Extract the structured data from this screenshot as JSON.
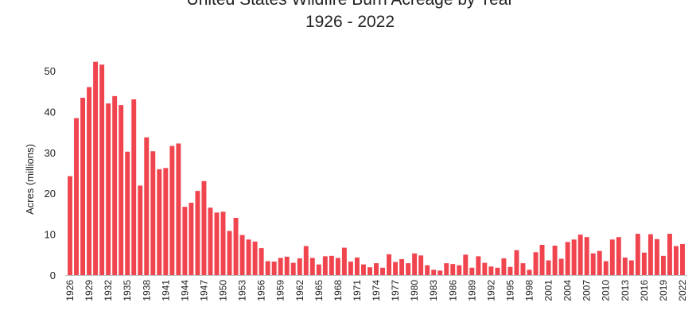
{
  "chart_data": {
    "type": "bar",
    "title": "United States Wildfire Burn Acreage by Year",
    "subtitle": "1926 - 2022",
    "xlabel": "",
    "ylabel": "Acres (millions)",
    "ylim": [
      0,
      50
    ],
    "yticks": [
      0,
      10,
      20,
      30,
      40,
      50
    ],
    "xtick_labels": [
      "1926",
      "1929",
      "1932",
      "1935",
      "1938",
      "1941",
      "1944",
      "1947",
      "1950",
      "1953",
      "1956",
      "1959",
      "1962",
      "1965",
      "1968",
      "1971",
      "1974",
      "1977",
      "1980",
      "1983",
      "1986",
      "1989",
      "1992",
      "1995",
      "1998",
      "2001",
      "2004",
      "2007",
      "2010",
      "2013",
      "2016",
      "2019",
      "2022"
    ],
    "bar_color": "#f0454f",
    "grid": false,
    "categories": [
      1926,
      1927,
      1928,
      1929,
      1930,
      1931,
      1932,
      1933,
      1934,
      1935,
      1936,
      1937,
      1938,
      1939,
      1940,
      1941,
      1942,
      1943,
      1944,
      1945,
      1946,
      1947,
      1948,
      1949,
      1950,
      1951,
      1952,
      1953,
      1954,
      1955,
      1956,
      1957,
      1958,
      1959,
      1960,
      1961,
      1962,
      1963,
      1964,
      1965,
      1966,
      1967,
      1968,
      1969,
      1970,
      1971,
      1972,
      1973,
      1974,
      1975,
      1976,
      1977,
      1978,
      1979,
      1980,
      1981,
      1982,
      1983,
      1984,
      1985,
      1986,
      1987,
      1988,
      1989,
      1990,
      1991,
      1992,
      1993,
      1994,
      1995,
      1996,
      1997,
      1998,
      1999,
      2000,
      2001,
      2002,
      2003,
      2004,
      2005,
      2006,
      2007,
      2008,
      2009,
      2010,
      2011,
      2012,
      2013,
      2014,
      2015,
      2016,
      2017,
      2018,
      2019,
      2020,
      2021,
      2022
    ],
    "values": [
      24.2,
      38.4,
      43.4,
      46.0,
      52.2,
      51.5,
      42.0,
      43.8,
      41.6,
      30.2,
      43.0,
      21.9,
      33.7,
      30.3,
      25.9,
      26.2,
      31.6,
      32.2,
      16.7,
      17.7,
      20.6,
      23.0,
      16.5,
      15.3,
      15.5,
      10.8,
      14.0,
      9.8,
      8.7,
      8.2,
      6.6,
      3.4,
      3.3,
      4.2,
      4.5,
      3.0,
      4.1,
      7.1,
      4.2,
      2.6,
      4.6,
      4.7,
      4.2,
      6.7,
      3.3,
      4.3,
      2.6,
      1.9,
      2.9,
      1.8,
      5.1,
      3.2,
      3.9,
      2.9,
      5.3,
      4.8,
      2.4,
      1.3,
      1.1,
      2.9,
      2.7,
      2.4,
      5.0,
      1.8,
      4.6,
      3.0,
      2.1,
      1.8,
      4.1,
      2.0,
      6.1,
      2.9,
      1.3,
      5.6,
      7.4,
      3.6,
      7.2,
      4.0,
      8.1,
      8.7,
      9.9,
      9.3,
      5.3,
      5.9,
      3.4,
      8.7,
      9.3,
      4.3,
      3.6,
      10.1,
      5.5,
      10.0,
      8.8,
      4.7,
      10.1,
      7.1,
      7.6
    ]
  }
}
